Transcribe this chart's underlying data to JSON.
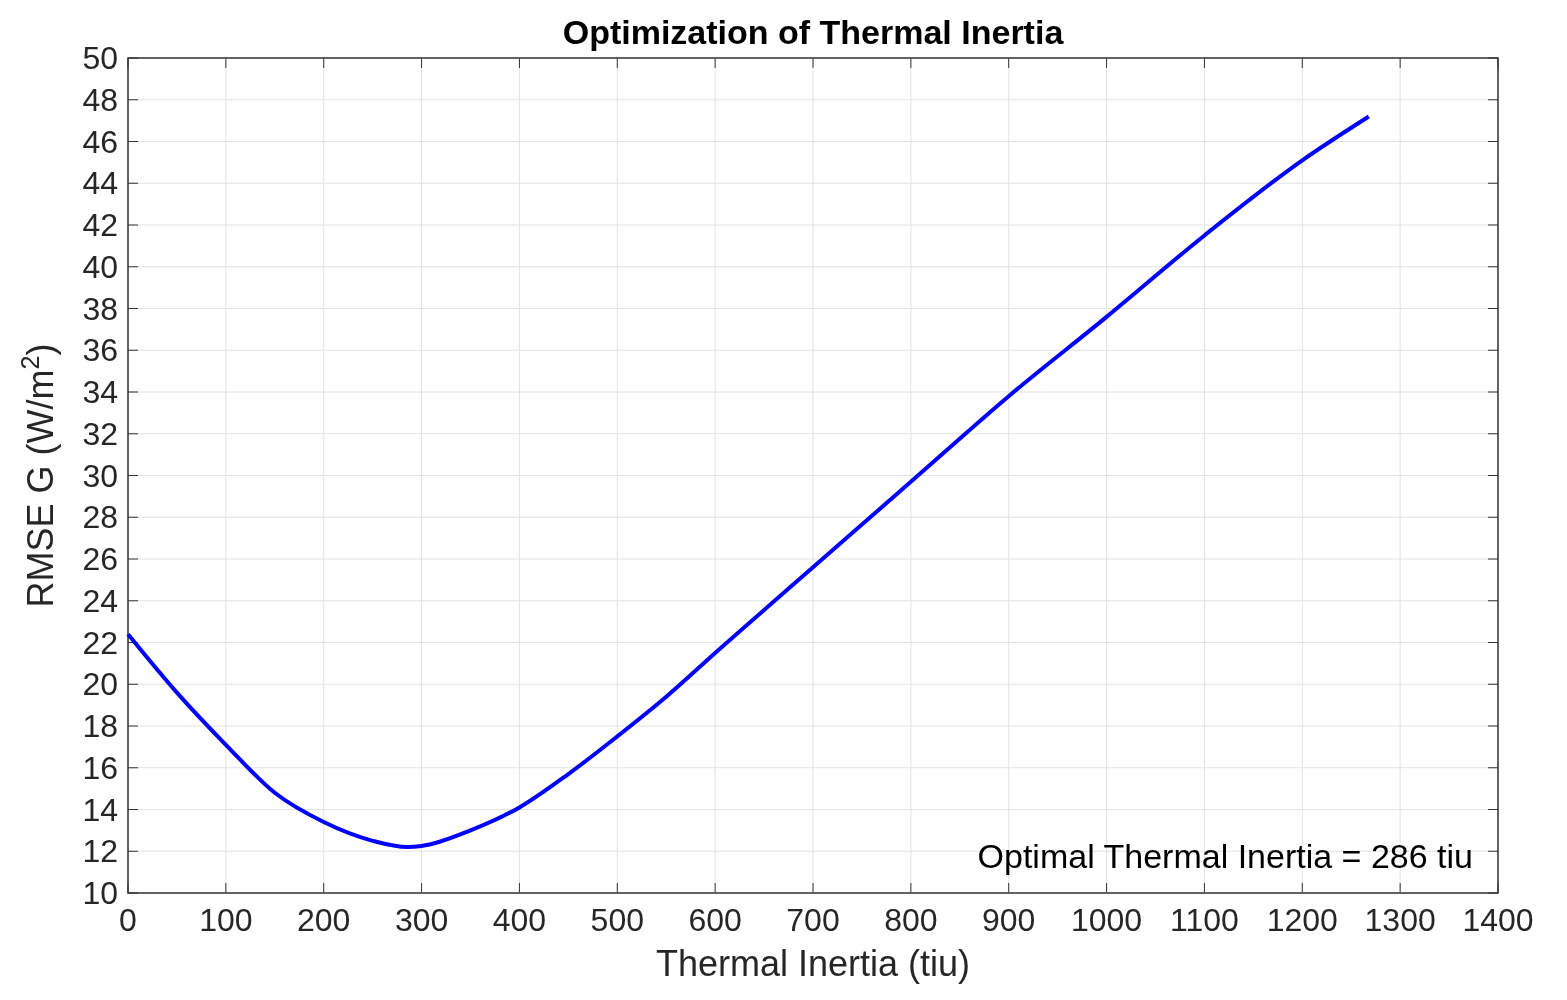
{
  "chart_data": {
    "type": "line",
    "title": "Optimization of Thermal Inertia",
    "xlabel": "Thermal Inertia (tiu)",
    "ylabel": "RMSE G (W/m$^{2}$)",
    "annotations": [
      "Optimal Thermal Inertia = 286 tiu"
    ],
    "x": [
      0,
      50,
      100,
      150,
      200,
      250,
      286,
      300,
      350,
      400,
      450,
      500,
      550,
      600,
      700,
      800,
      900,
      1000,
      1100,
      1200,
      1268
    ],
    "series": [
      {
        "color": "#0000ff",
        "values": [
          22.4,
          19.6,
          17.1,
          14.8,
          13.4,
          12.5,
          12.2,
          12.25,
          13.0,
          14.1,
          15.7,
          17.5,
          19.4,
          21.5,
          25.6,
          29.7,
          33.8,
          37.6,
          41.5,
          45.1,
          47.2
        ]
      }
    ],
    "xlim": [
      0,
      1400
    ],
    "xticks": [
      0,
      100,
      200,
      300,
      400,
      500,
      600,
      700,
      800,
      900,
      1000,
      1100,
      1200,
      1300,
      1400
    ],
    "ylim": [
      10,
      50
    ],
    "yticks": [
      10,
      12,
      14,
      16,
      18,
      20,
      22,
      24,
      26,
      28,
      30,
      32,
      34,
      36,
      38,
      40,
      42,
      44,
      46,
      48,
      50
    ],
    "grid": true,
    "marker": "none",
    "line_style": "solid"
  }
}
